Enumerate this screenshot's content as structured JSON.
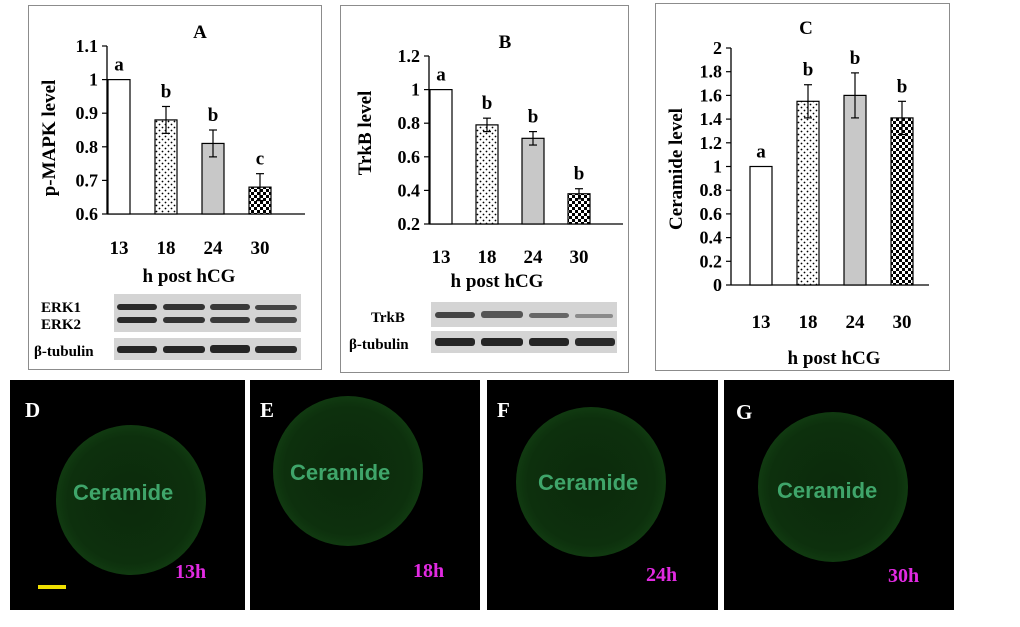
{
  "colors": {
    "axis": "#000000",
    "gray": "#c8c8c8",
    "dots": "#ffffff",
    "magenta": "#e22ae2",
    "stain": "#3fa56a"
  },
  "chart_data": [
    {
      "id": "A",
      "type": "bar",
      "title": "A",
      "ylabel": "p-MAPK level",
      "xlabel": "h post hCG",
      "categories": [
        "13",
        "18",
        "24",
        "30"
      ],
      "values": [
        1.0,
        0.88,
        0.81,
        0.68
      ],
      "errors": [
        0,
        0.04,
        0.04,
        0.04
      ],
      "letters": [
        "a",
        "b",
        "b",
        "c"
      ],
      "fills": [
        "white",
        "dots",
        "gray",
        "checker"
      ],
      "ylim": [
        0.6,
        1.1
      ],
      "yticks": [
        "0.6",
        "0.7",
        "0.8",
        "0.9",
        "1",
        "1.1"
      ],
      "blot_labels": [
        "ERK1",
        "ERK2",
        "β-tubulin"
      ]
    },
    {
      "id": "B",
      "type": "bar",
      "title": "B",
      "ylabel": "TrkB level",
      "xlabel": "h post hCG",
      "categories": [
        "13",
        "18",
        "24",
        "30"
      ],
      "values": [
        1.0,
        0.79,
        0.71,
        0.38
      ],
      "errors": [
        0,
        0.04,
        0.04,
        0.03
      ],
      "letters": [
        "a",
        "b",
        "b",
        "b"
      ],
      "fills": [
        "white",
        "dots",
        "gray",
        "checker"
      ],
      "ylim": [
        0.2,
        1.2
      ],
      "yticks": [
        "0.2",
        "0.4",
        "0.6",
        "0.8",
        "1",
        "1.2"
      ],
      "blot_labels": [
        "TrkB",
        "β-tubulin"
      ]
    },
    {
      "id": "C",
      "type": "bar",
      "title": "C",
      "ylabel": "Ceramide level",
      "xlabel": "h post hCG",
      "categories": [
        "13",
        "18",
        "24",
        "30"
      ],
      "values": [
        1.0,
        1.55,
        1.6,
        1.41
      ],
      "errors": [
        0,
        0.14,
        0.19,
        0.14
      ],
      "letters": [
        "a",
        "b",
        "b",
        "b"
      ],
      "fills": [
        "white",
        "dots",
        "gray",
        "checker"
      ],
      "ylim": [
        0,
        2
      ],
      "yticks": [
        "0",
        "0.2",
        "0.4",
        "0.6",
        "0.8",
        "1",
        "1.2",
        "1.4",
        "1.6",
        "1.8",
        "2"
      ]
    }
  ],
  "micrographs": [
    {
      "label": "D",
      "stain": "Ceramide",
      "time": "13h"
    },
    {
      "label": "E",
      "stain": "Ceramide",
      "time": "18h"
    },
    {
      "label": "F",
      "stain": "Ceramide",
      "time": "24h"
    },
    {
      "label": "G",
      "stain": "Ceramide",
      "time": "30h"
    }
  ]
}
